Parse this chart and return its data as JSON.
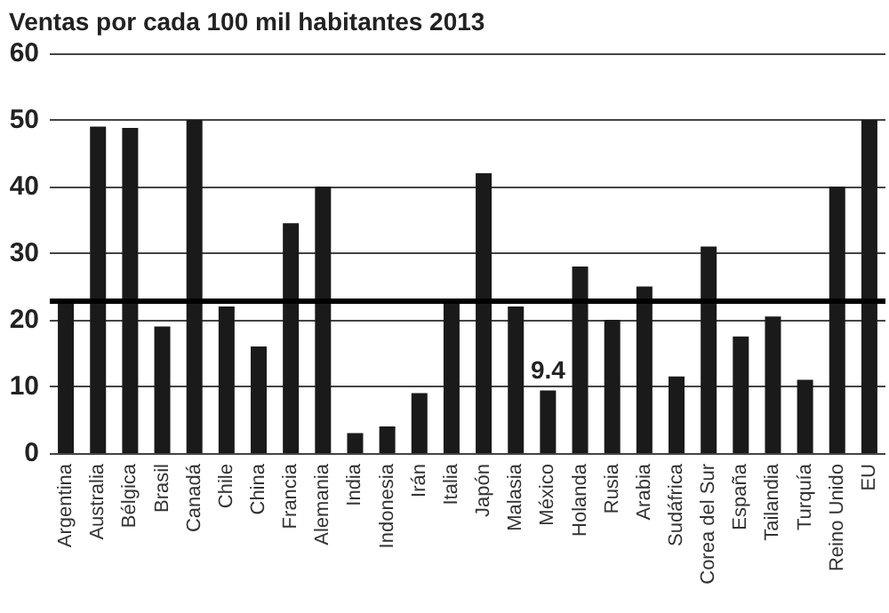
{
  "chart_data": {
    "type": "bar",
    "title": "Ventas por cada 100 mil habitantes 2013",
    "categories": [
      "Argentina",
      "Australia",
      "Bélgica",
      "Brasil",
      "Canadá",
      "Chile",
      "China",
      "Francia",
      "Alemania",
      "India",
      "Indonesia",
      "Irán",
      "Italia",
      "Japón",
      "Malasia",
      "México",
      "Holanda",
      "Rusia",
      "Arabia",
      "Sudáfrica",
      "Corea del Sur",
      "España",
      "Tailandia",
      "Turquía",
      "Reino Unido",
      "EU"
    ],
    "values": [
      23,
      49,
      48.8,
      19,
      50,
      22,
      16,
      34.5,
      40,
      3,
      4,
      9,
      23,
      42,
      22,
      9.4,
      28,
      20,
      25,
      11.5,
      31,
      17.5,
      20.5,
      11,
      40,
      50
    ],
    "value_labels": [
      null,
      null,
      null,
      null,
      null,
      null,
      null,
      null,
      null,
      null,
      null,
      null,
      null,
      null,
      null,
      "9.4",
      null,
      null,
      null,
      null,
      null,
      null,
      null,
      null,
      null,
      null
    ],
    "color": "#1a1a1a",
    "ylim": [
      0,
      60
    ],
    "yticks": [
      0,
      10,
      20,
      30,
      40,
      50,
      60
    ],
    "grid": "y",
    "ref_lines": [
      {
        "axis": "y",
        "value": 23,
        "color": "#000000"
      }
    ]
  }
}
